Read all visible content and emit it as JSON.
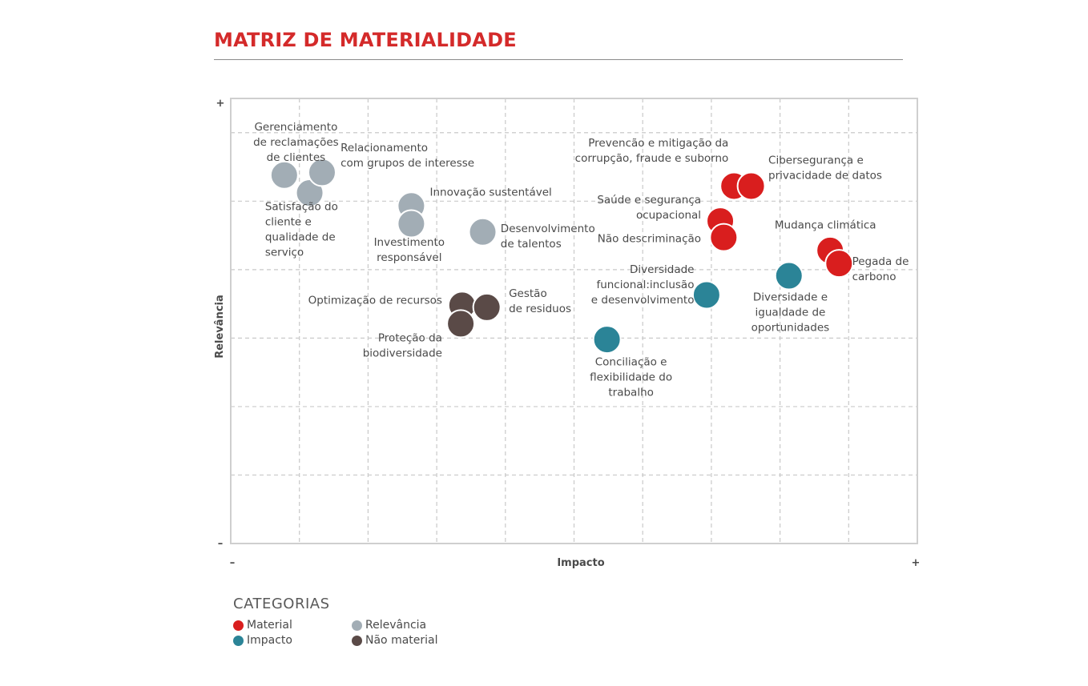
{
  "title": "MATRIZ DE MATERIALIDADE",
  "colors": {
    "Material": "#d91e1e",
    "Impacto": "#2b8497",
    "Relevância": "#a2adb5",
    "Não material": "#5a4a47"
  },
  "legend": {
    "title": "CATEGORIAS",
    "items": [
      "Material",
      "Impacto",
      "Relevância",
      "Não material"
    ]
  },
  "chart_data": {
    "type": "scatter",
    "title": "MATRIZ DE MATERIALIDADE",
    "xlabel": "Impacto",
    "ylabel": "Relevância",
    "x_min_label": "–",
    "x_max_label": "+",
    "y_min_label": "–",
    "y_max_label": "+",
    "xlim": [
      0,
      10
    ],
    "ylim": [
      0,
      6.5
    ],
    "grid": true,
    "legend_position": "bottom-left",
    "points": [
      {
        "x": 0.78,
        "y": 5.38,
        "category": "Relevância"
      },
      {
        "x": 1.15,
        "y": 5.12,
        "category": "Relevância"
      },
      {
        "x": 1.33,
        "y": 5.42,
        "category": "Relevância"
      },
      {
        "x": 2.63,
        "y": 4.93,
        "category": "Relevância"
      },
      {
        "x": 2.63,
        "y": 4.67,
        "category": "Relevância"
      },
      {
        "x": 3.67,
        "y": 4.55,
        "category": "Relevância"
      },
      {
        "x": 3.37,
        "y": 3.48,
        "category": "Não material"
      },
      {
        "x": 3.73,
        "y": 3.45,
        "category": "Não material"
      },
      {
        "x": 3.35,
        "y": 3.21,
        "category": "Não material"
      },
      {
        "x": 5.48,
        "y": 2.98,
        "category": "Impacto"
      },
      {
        "x": 6.93,
        "y": 3.63,
        "category": "Impacto"
      },
      {
        "x": 8.13,
        "y": 3.91,
        "category": "Impacto"
      },
      {
        "x": 7.33,
        "y": 5.22,
        "category": "Material"
      },
      {
        "x": 7.58,
        "y": 5.22,
        "category": "Material"
      },
      {
        "x": 7.13,
        "y": 4.71,
        "category": "Material"
      },
      {
        "x": 7.18,
        "y": 4.47,
        "category": "Material"
      },
      {
        "x": 8.73,
        "y": 4.28,
        "category": "Material"
      },
      {
        "x": 8.86,
        "y": 4.09,
        "category": "Material"
      }
    ],
    "annotations": [
      {
        "lines": [
          "Gerenciamento",
          "de reclamações",
          "de clientes"
        ],
        "x": 0.95,
        "y": 6.03,
        "anchor": "middle"
      },
      {
        "lines": [
          "Relacionamento",
          "com grupos de interesse"
        ],
        "x": 1.6,
        "y": 5.73,
        "anchor": "start"
      },
      {
        "lines": [
          "Satisfação do",
          "cliente e",
          "qualidade de",
          "serviço"
        ],
        "x": 0.5,
        "y": 4.87,
        "anchor": "start"
      },
      {
        "lines": [
          "Innovação sustentável"
        ],
        "x": 2.9,
        "y": 5.08,
        "anchor": "start"
      },
      {
        "lines": [
          "Investimento",
          "responsável"
        ],
        "x": 2.6,
        "y": 4.35,
        "anchor": "middle"
      },
      {
        "lines": [
          "Desenvolvimento",
          "de talentos"
        ],
        "x": 3.93,
        "y": 4.55,
        "anchor": "start"
      },
      {
        "lines": [
          "Optimização de recursos"
        ],
        "x": 3.08,
        "y": 3.5,
        "anchor": "end"
      },
      {
        "lines": [
          "Gestão",
          "de residuos"
        ],
        "x": 4.05,
        "y": 3.6,
        "anchor": "start"
      },
      {
        "lines": [
          "Proteção da",
          "biodiversidade"
        ],
        "x": 3.08,
        "y": 2.95,
        "anchor": "end"
      },
      {
        "lines": [
          "Conciliação e",
          "flexibilidade do",
          "trabalho"
        ],
        "x": 5.83,
        "y": 2.6,
        "anchor": "middle"
      },
      {
        "lines": [
          "Diversidade",
          "funcional:inclusão",
          "e desenvolvimento"
        ],
        "x": 6.75,
        "y": 3.95,
        "anchor": "end"
      },
      {
        "lines": [
          "Diversidade e",
          "igualdade de",
          "oportunidades"
        ],
        "x": 8.15,
        "y": 3.55,
        "anchor": "middle"
      },
      {
        "lines": [
          "Prevencão e mitigação da",
          "corrupção, fraude e suborno"
        ],
        "x": 7.25,
        "y": 5.8,
        "anchor": "end"
      },
      {
        "lines": [
          "Cibersegurança e",
          "privacidade de datos"
        ],
        "x": 7.83,
        "y": 5.55,
        "anchor": "start"
      },
      {
        "lines": [
          "Saúde e segurança",
          "ocupacional"
        ],
        "x": 6.85,
        "y": 4.97,
        "anchor": "end"
      },
      {
        "lines": [
          "Não descriminação"
        ],
        "x": 6.85,
        "y": 4.4,
        "anchor": "end"
      },
      {
        "lines": [
          "Mudança climática"
        ],
        "x": 9.4,
        "y": 4.6,
        "anchor": "end"
      },
      {
        "lines": [
          "Pegada de",
          "carbono"
        ],
        "x": 9.05,
        "y": 4.07,
        "anchor": "start"
      }
    ]
  }
}
